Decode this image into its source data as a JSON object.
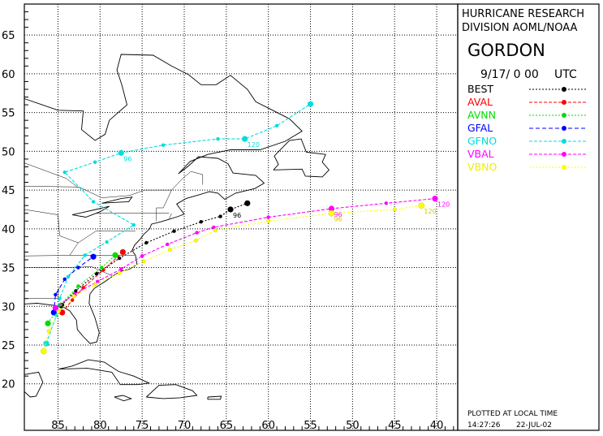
{
  "header": {
    "line1": "HURRICANE RESEARCH",
    "line2": "DIVISION AOML/NOAA",
    "storm": "GORDON",
    "datetime": "9/17/ 0 00",
    "tz": "UTC"
  },
  "footer": {
    "note": "PLOTTED AT LOCAL TIME",
    "time": "14:27:26",
    "date": "22-JUL-02"
  },
  "chart_data": {
    "type": "line",
    "title": "GORDON",
    "xlabel": "",
    "ylabel": "",
    "xlim": [
      89,
      37.5
    ],
    "ylim": [
      14,
      69
    ],
    "x_ticks": [
      85,
      80,
      75,
      70,
      65,
      60,
      55,
      50,
      45,
      40
    ],
    "y_ticks": [
      20,
      25,
      30,
      35,
      40,
      45,
      50,
      55,
      60,
      65
    ],
    "grid": true,
    "legend": "right panel",
    "series": [
      {
        "name": "BEST",
        "color": "#000000",
        "dash": "2,2",
        "points": [
          [
            84.6,
            30.1
          ],
          [
            82.9,
            32.0
          ],
          [
            80.4,
            34.2
          ],
          [
            77.7,
            36.2
          ],
          [
            74.5,
            38.2
          ],
          [
            71.2,
            39.7
          ],
          [
            68.0,
            40.9
          ],
          [
            65.7,
            41.6
          ],
          [
            64.5,
            42.5
          ],
          [
            62.5,
            43.3
          ]
        ],
        "labels": [
          {
            "i": 8,
            "text": "96"
          }
        ]
      },
      {
        "name": "AVAL",
        "color": "#ff0000",
        "dash": "4,2",
        "points": [
          [
            84.5,
            29.2
          ],
          [
            83.3,
            30.8
          ],
          [
            82.0,
            32.4
          ],
          [
            79.6,
            34.7
          ],
          [
            77.3,
            37.0
          ]
        ],
        "labels": []
      },
      {
        "name": "AVNN",
        "color": "#00dd00",
        "dash": "2,2",
        "points": [
          [
            86.2,
            27.8
          ],
          [
            84.7,
            30.2
          ],
          [
            82.6,
            32.6
          ],
          [
            79.8,
            35.0
          ],
          [
            78.2,
            36.6
          ]
        ],
        "labels": []
      },
      {
        "name": "GFAL",
        "color": "#0000ff",
        "dash": "5,3",
        "points": [
          [
            85.5,
            29.2
          ],
          [
            85.3,
            31.5
          ],
          [
            84.2,
            33.5
          ],
          [
            82.6,
            35.0
          ],
          [
            80.8,
            36.4
          ]
        ],
        "labels": []
      },
      {
        "name": "GFNO",
        "color": "#00dddd",
        "dash": "4,2",
        "points": [
          [
            86.4,
            25.2
          ],
          [
            85.2,
            28.8
          ],
          [
            84.8,
            31.0
          ],
          [
            83.8,
            33.8
          ],
          [
            81.8,
            36.6
          ],
          [
            79.2,
            38.3
          ],
          [
            76.0,
            40.5
          ],
          [
            80.8,
            43.5
          ],
          [
            84.2,
            47.3
          ],
          [
            80.6,
            48.6
          ],
          [
            77.5,
            49.8
          ],
          [
            72.5,
            50.8
          ],
          [
            66.0,
            51.6
          ],
          [
            62.8,
            51.6
          ],
          [
            59.0,
            53.3
          ],
          [
            55.0,
            56.1
          ]
        ],
        "labels": [
          {
            "i": 10,
            "text": "96"
          },
          {
            "i": 13,
            "text": "120"
          }
        ]
      },
      {
        "name": "VBAL",
        "color": "#ff00ff",
        "dash": "4,2",
        "points": [
          [
            85.3,
            29.8
          ],
          [
            83.0,
            31.6
          ],
          [
            80.3,
            33.2
          ],
          [
            77.5,
            34.8
          ],
          [
            75.0,
            36.5
          ],
          [
            72.0,
            38.0
          ],
          [
            68.5,
            39.5
          ],
          [
            66.5,
            40.2
          ],
          [
            60.0,
            41.5
          ],
          [
            52.5,
            42.6
          ],
          [
            46.0,
            43.3
          ],
          [
            40.2,
            43.9
          ]
        ],
        "labels": [
          {
            "i": 9,
            "text": "96"
          },
          {
            "i": 11,
            "text": "120"
          }
        ]
      },
      {
        "name": "VBNO",
        "color": "#ffff00",
        "dash": "2,2",
        "points": [
          [
            86.7,
            24.2
          ],
          [
            86.1,
            26.8
          ],
          [
            84.9,
            29.4
          ],
          [
            83.1,
            31.3
          ],
          [
            80.6,
            32.8
          ],
          [
            77.7,
            34.3
          ],
          [
            74.8,
            35.8
          ],
          [
            71.7,
            37.3
          ],
          [
            68.6,
            38.5
          ],
          [
            66.3,
            39.8
          ],
          [
            60.0,
            41.0
          ],
          [
            52.5,
            42.0
          ],
          [
            45.0,
            42.5
          ],
          [
            41.8,
            43.0
          ]
        ],
        "labels": [
          {
            "i": 11,
            "text": "96"
          },
          {
            "i": 13,
            "text": "120"
          }
        ]
      }
    ]
  }
}
